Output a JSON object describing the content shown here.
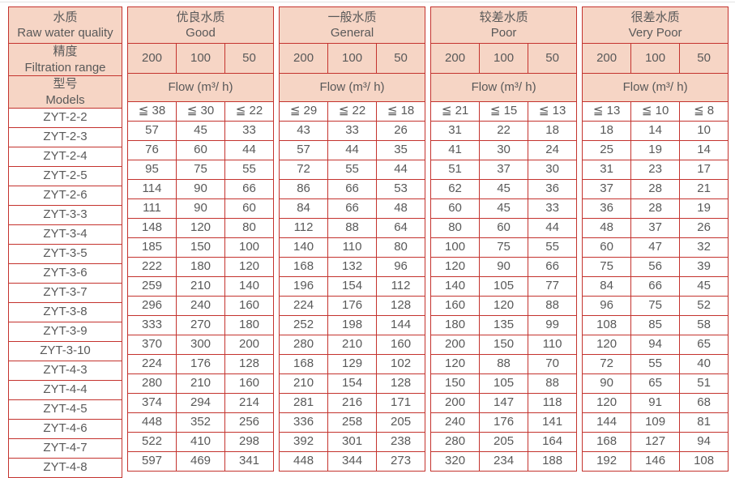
{
  "colors": {
    "border_red": "#c4332e",
    "header_peach": "#f6d5c5",
    "text_gray": "#595959"
  },
  "table": {
    "corner_zh": "水质",
    "corner_en": "Raw water quality",
    "precision_zh": "精度",
    "precision_en": "Filtration range",
    "models_zh": "型号",
    "models_en": "Models",
    "flow_label": "Flow (m³/ h)",
    "precisions": [
      "200",
      "100",
      "50"
    ],
    "groups": [
      {
        "zh": "优良水质",
        "en": "Good"
      },
      {
        "zh": "一般水质",
        "en": "General"
      },
      {
        "zh": "较差水质",
        "en": "Poor"
      },
      {
        "zh": "很差水质",
        "en": "Very Poor"
      }
    ],
    "rows": [
      {
        "model": "ZYT-2-2",
        "values": [
          "≦ 38",
          "≦ 30",
          "≦ 22",
          "≦ 29",
          "≦ 22",
          "≦ 18",
          "≦ 21",
          "≦ 15",
          "≦ 13",
          "≦ 13",
          "≦ 10",
          "≦ 8"
        ]
      },
      {
        "model": "ZYT-2-3",
        "values": [
          "57",
          "45",
          "33",
          "43",
          "33",
          "26",
          "31",
          "22",
          "18",
          "18",
          "14",
          "10"
        ]
      },
      {
        "model": "ZYT-2-4",
        "values": [
          "76",
          "60",
          "44",
          "57",
          "44",
          "35",
          "41",
          "30",
          "24",
          "25",
          "19",
          "14"
        ]
      },
      {
        "model": "ZYT-2-5",
        "values": [
          "95",
          "75",
          "55",
          "72",
          "55",
          "44",
          "51",
          "37",
          "30",
          "31",
          "23",
          "17"
        ]
      },
      {
        "model": "ZYT-2-6",
        "values": [
          "114",
          "90",
          "66",
          "86",
          "66",
          "53",
          "62",
          "45",
          "36",
          "37",
          "28",
          "21"
        ]
      },
      {
        "model": "ZYT-3-3",
        "values": [
          "111",
          "90",
          "60",
          "84",
          "66",
          "48",
          "60",
          "45",
          "33",
          "36",
          "28",
          "19"
        ]
      },
      {
        "model": "ZYT-3-4",
        "values": [
          "148",
          "120",
          "80",
          "112",
          "88",
          "64",
          "80",
          "60",
          "44",
          "48",
          "37",
          "26"
        ]
      },
      {
        "model": "ZYT-3-5",
        "values": [
          "185",
          "150",
          "100",
          "140",
          "110",
          "80",
          "100",
          "75",
          "55",
          "60",
          "47",
          "32"
        ]
      },
      {
        "model": "ZYT-3-6",
        "values": [
          "222",
          "180",
          "120",
          "168",
          "132",
          "96",
          "120",
          "90",
          "66",
          "75",
          "56",
          "39"
        ]
      },
      {
        "model": "ZYT-3-7",
        "values": [
          "259",
          "210",
          "140",
          "196",
          "154",
          "112",
          "140",
          "105",
          "77",
          "84",
          "66",
          "45"
        ]
      },
      {
        "model": "ZYT-3-8",
        "values": [
          "296",
          "240",
          "160",
          "224",
          "176",
          "128",
          "160",
          "120",
          "88",
          "96",
          "75",
          "52"
        ]
      },
      {
        "model": "ZYT-3-9",
        "values": [
          "333",
          "270",
          "180",
          "252",
          "198",
          "144",
          "180",
          "135",
          "99",
          "108",
          "85",
          "58"
        ]
      },
      {
        "model": "ZYT-3-10",
        "values": [
          "370",
          "300",
          "200",
          "280",
          "210",
          "160",
          "200",
          "150",
          "110",
          "120",
          "94",
          "65"
        ]
      },
      {
        "model": "ZYT-4-3",
        "values": [
          "224",
          "176",
          "128",
          "168",
          "129",
          "102",
          "120",
          "88",
          "70",
          "72",
          "55",
          "40"
        ]
      },
      {
        "model": "ZYT-4-4",
        "values": [
          "280",
          "210",
          "160",
          "210",
          "154",
          "128",
          "150",
          "105",
          "88",
          "90",
          "65",
          "51"
        ]
      },
      {
        "model": "ZYT-4-5",
        "values": [
          "374",
          "294",
          "214",
          "281",
          "216",
          "171",
          "200",
          "147",
          "118",
          "120",
          "91",
          "68"
        ]
      },
      {
        "model": "ZYT-4-6",
        "values": [
          "448",
          "352",
          "256",
          "336",
          "258",
          "205",
          "240",
          "176",
          "141",
          "144",
          "109",
          "81"
        ]
      },
      {
        "model": "ZYT-4-7",
        "values": [
          "522",
          "410",
          "298",
          "392",
          "301",
          "238",
          "280",
          "205",
          "164",
          "168",
          "127",
          "94"
        ]
      },
      {
        "model": "ZYT-4-8",
        "values": [
          "597",
          "469",
          "341",
          "448",
          "344",
          "273",
          "320",
          "234",
          "188",
          "192",
          "146",
          "108"
        ]
      }
    ]
  }
}
